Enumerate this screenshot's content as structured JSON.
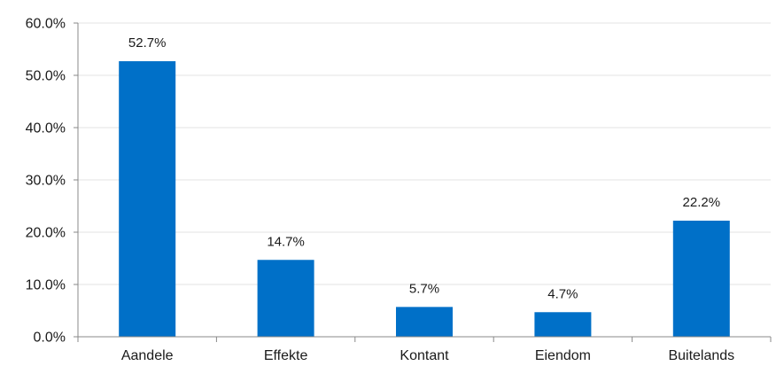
{
  "chart_data": {
    "type": "bar",
    "title": "",
    "xlabel": "",
    "ylabel": "",
    "categories": [
      "Aandele",
      "Effekte",
      "Kontant",
      "Eiendom",
      "Buitelands"
    ],
    "values": [
      52.7,
      14.7,
      5.7,
      4.7,
      22.2
    ],
    "data_labels": [
      "52.7%",
      "14.7%",
      "5.7%",
      "4.7%",
      "22.2%"
    ],
    "ylim": [
      0,
      60
    ],
    "yticks": [
      0,
      10,
      20,
      30,
      40,
      50,
      60
    ],
    "ytick_labels": [
      "0.0%",
      "10.0%",
      "20.0%",
      "30.0%",
      "40.0%",
      "50.0%",
      "60.0%"
    ],
    "grid": true,
    "legend": "none",
    "colors": {
      "bar": "#0070c8",
      "grid": "#e3e3e3",
      "axis": "#888888",
      "text": "#1a1a1a"
    }
  }
}
